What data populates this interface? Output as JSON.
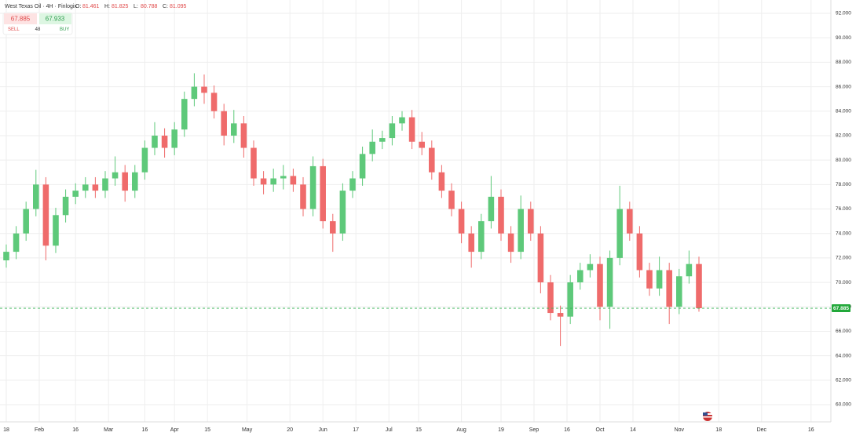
{
  "chart_data": {
    "type": "candlestick",
    "title": "West Texas Oil · 4H · Finlogix",
    "ohlc_legend": [
      {
        "label": "O:",
        "value": 81.461
      },
      {
        "label": "H:",
        "value": 81.825
      },
      {
        "label": "L:",
        "value": 80.788
      },
      {
        "label": "C:",
        "value": 81.095
      }
    ],
    "trade_widget": {
      "sell_price": 67.885,
      "buy_price": 67.933,
      "sell_label": "SELL",
      "buy_label": "BUY",
      "spread": 48
    },
    "last_price": 67.885,
    "up_color": "#5ec97a",
    "down_color": "#ef6b6b",
    "grid": true,
    "xlim": [
      -1.9,
      250
    ],
    "xticks": [
      {
        "value": 0,
        "label": "18"
      },
      {
        "value": 10,
        "label": "Feb"
      },
      {
        "value": 21,
        "label": "16"
      },
      {
        "value": 31,
        "label": "Mar"
      },
      {
        "value": 42,
        "label": "16"
      },
      {
        "value": 51,
        "label": "Apr"
      },
      {
        "value": 61,
        "label": "15"
      },
      {
        "value": 73,
        "label": "May"
      },
      {
        "value": 86,
        "label": "20"
      },
      {
        "value": 96,
        "label": "Jun"
      },
      {
        "value": 106,
        "label": "17"
      },
      {
        "value": 116,
        "label": "Jul"
      },
      {
        "value": 125,
        "label": "15"
      },
      {
        "value": 138,
        "label": "Aug"
      },
      {
        "value": 150,
        "label": "19"
      },
      {
        "value": 160,
        "label": "Sep"
      },
      {
        "value": 170,
        "label": "16"
      },
      {
        "value": 180,
        "label": "Oct"
      },
      {
        "value": 190,
        "label": "14"
      },
      {
        "value": 204,
        "label": "Nov"
      },
      {
        "value": 216,
        "label": "18"
      },
      {
        "value": 229,
        "label": "Dec"
      },
      {
        "value": 244,
        "label": "16"
      }
    ],
    "ylim": [
      58.59,
      93.09
    ],
    "yticks": [
      {
        "value": 60,
        "label": "60.000"
      },
      {
        "value": 62,
        "label": "62.000"
      },
      {
        "value": 64,
        "label": "64.000"
      },
      {
        "value": 66,
        "label": "66.000"
      },
      {
        "value": 68,
        "label": "68.000"
      },
      {
        "value": 70,
        "label": "70.000"
      },
      {
        "value": 72,
        "label": "72.000"
      },
      {
        "value": 74,
        "label": "74.000"
      },
      {
        "value": 76,
        "label": "76.000"
      },
      {
        "value": 78,
        "label": "78.000"
      },
      {
        "value": 80,
        "label": "80.000"
      },
      {
        "value": 82,
        "label": "82.000"
      },
      {
        "value": 84,
        "label": "84.000"
      },
      {
        "value": 86,
        "label": "86.000"
      },
      {
        "value": 88,
        "label": "88.000"
      },
      {
        "value": 90,
        "label": "90.000"
      },
      {
        "value": 92,
        "label": "92.000"
      }
    ],
    "x": [
      0,
      3,
      6,
      9,
      12,
      15,
      18,
      21,
      24,
      27,
      30,
      33,
      36,
      39,
      42,
      45,
      48,
      51,
      54,
      57,
      60,
      63,
      66,
      69,
      72,
      75,
      78,
      81,
      84,
      87,
      90,
      93,
      96,
      99,
      102,
      105,
      108,
      111,
      114,
      117,
      120,
      123,
      126,
      129,
      132,
      135,
      138,
      141,
      144,
      147,
      150,
      153,
      156,
      159,
      162,
      165,
      168,
      171,
      174,
      177,
      180,
      183,
      186,
      189,
      192,
      195,
      198,
      201,
      204,
      207,
      210
    ],
    "open": [
      71.8,
      72.5,
      74,
      76,
      78,
      73,
      75.5,
      77,
      77.5,
      78,
      77.5,
      78.5,
      79,
      77.5,
      79,
      81,
      82,
      81,
      82.5,
      85,
      86,
      85.5,
      84,
      82,
      83,
      81,
      78.5,
      78,
      78.5,
      78.7,
      78,
      76,
      79.5,
      75,
      74,
      77.5,
      78.5,
      80.5,
      81.5,
      81.8,
      83,
      83.5,
      81.5,
      81,
      79,
      77.5,
      76,
      74,
      72.5,
      75,
      77,
      74,
      72.5,
      76,
      74,
      70,
      67.5,
      67.2,
      70,
      71,
      71.5,
      68,
      72,
      76,
      74,
      71,
      69.5,
      71,
      68,
      70.5,
      71.5
    ],
    "high": [
      73.1,
      74.6,
      76.6,
      79.2,
      78.6,
      76.1,
      77.6,
      78.1,
      78.6,
      78.6,
      79.1,
      80.3,
      79.6,
      79.6,
      81.6,
      83.1,
      82.6,
      83.1,
      85.6,
      87.1,
      87,
      86.1,
      84.6,
      84.1,
      83.6,
      81.6,
      79.1,
      79.3,
      79.6,
      79.3,
      78.6,
      80.3,
      80.1,
      75.6,
      78.1,
      79.1,
      81.1,
      82.5,
      82.4,
      83.6,
      84,
      84.1,
      82.3,
      81.6,
      79.6,
      78.1,
      76.6,
      74.6,
      75.6,
      78.7,
      77.6,
      74.6,
      77.1,
      76.6,
      74.6,
      70.6,
      68.1,
      70.6,
      71.6,
      72.3,
      72.1,
      72.6,
      77.9,
      76.6,
      74.6,
      71.6,
      72.1,
      71.6,
      71.1,
      72.6,
      72.1
    ],
    "low": [
      71.2,
      71.9,
      73.4,
      75.4,
      71.8,
      72.4,
      74.9,
      76.4,
      76.9,
      76.9,
      76.9,
      77.9,
      76.6,
      76.9,
      78.4,
      80.4,
      80.2,
      80.4,
      81.9,
      84.4,
      84.6,
      83.4,
      81.2,
      81.4,
      80.2,
      77.9,
      77.2,
      77.4,
      77.6,
      77.4,
      75.4,
      75.4,
      74.4,
      72.5,
      73.4,
      76.9,
      77.9,
      79.9,
      80.9,
      81.2,
      82.4,
      80.9,
      80.4,
      78.4,
      76.9,
      75.4,
      73.2,
      71.2,
      71.9,
      74.4,
      73.4,
      71.6,
      71.9,
      73.4,
      69.1,
      66.9,
      64.8,
      66.6,
      69.4,
      70.4,
      66.9,
      66.2,
      71.4,
      73.4,
      70.4,
      68.9,
      68.9,
      66.6,
      67.4,
      69.9,
      67.6
    ],
    "close": [
      72.5,
      74,
      76,
      78,
      73,
      75.5,
      77,
      77.5,
      78,
      77.5,
      78.5,
      79,
      77.5,
      79,
      81,
      82,
      81,
      82.5,
      85,
      86,
      85.5,
      84,
      82,
      83,
      81,
      78.5,
      78,
      78.5,
      78.7,
      78,
      76,
      79.5,
      75,
      74,
      77.5,
      78.5,
      80.5,
      81.5,
      81.8,
      83,
      83.5,
      81.5,
      81,
      79,
      77.5,
      76,
      74,
      72.5,
      75,
      77,
      74,
      72.5,
      76,
      74,
      70,
      67.5,
      67.2,
      70,
      71,
      71.5,
      68,
      72,
      76,
      74,
      71,
      69.5,
      71,
      68,
      70.5,
      71.5,
      67.885
    ]
  }
}
